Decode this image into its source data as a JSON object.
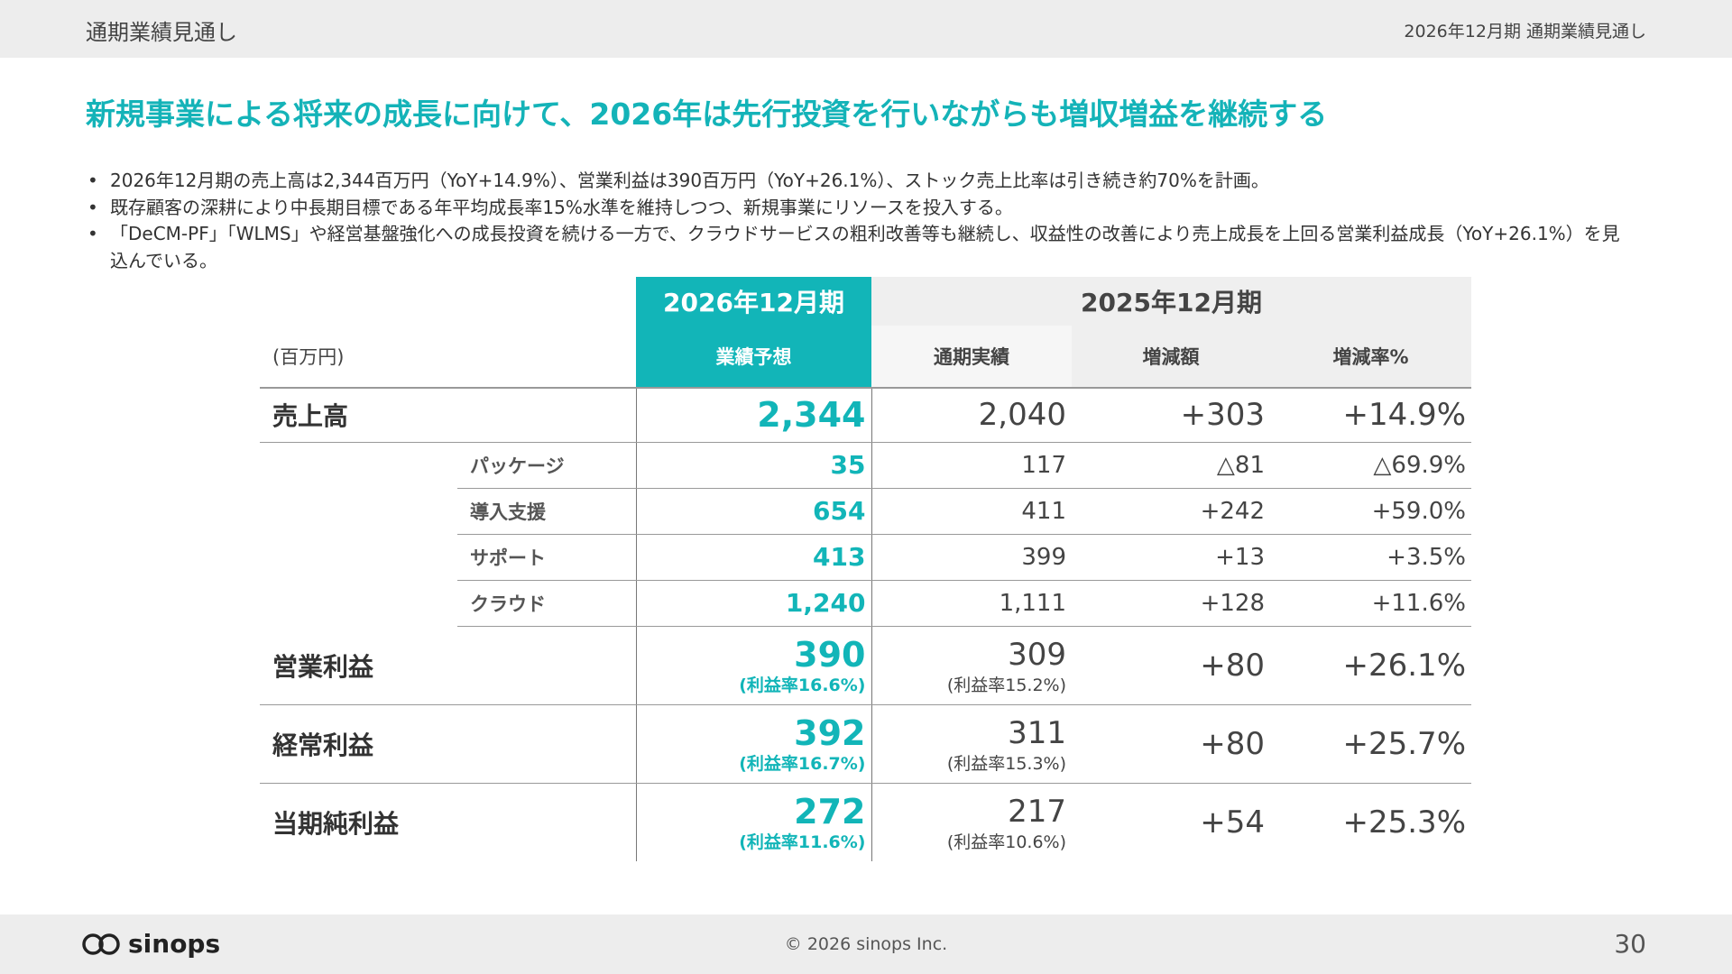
{
  "header": {
    "section": "通期業績見通し",
    "right": "2026年12月期 通期業績見通し"
  },
  "headline": "新規事業による将来の成長に向けて、2026年は先行投資を行いながらも増収増益を継続する",
  "bullets": [
    "2026年12月期の売上高は2,344百万円（YoY+14.9%）、営業利益は390百万円（YoY+26.1%）、ストック売上比率は引き続き約70%を計画。",
    "既存顧客の深耕により中長期目標である年平均成長率15%水準を維持しつつ、新規事業にリソースを投入する。",
    "「DeCM-PF」「WLMS」や経営基盤強化への成長投資を続ける一方で、クラウドサービスの粗利改善等も継続し、収益性の改善により売上成長を上回る営業利益成長（YoY+26.1%）を見込んでいる。"
  ],
  "table": {
    "unit": "(百万円)",
    "forecast_period": "2026年12月期",
    "forecast_label": "業績予想",
    "actual_period": "2025年12月期",
    "actual_columns": [
      "通期実績",
      "増減額",
      "増減率%"
    ],
    "rows": [
      {
        "label": "売上高",
        "kind": "main",
        "forecast": "2,344",
        "actual": "2,040",
        "diff": "+303",
        "rate": "+14.9%"
      },
      {
        "label": "パッケージ",
        "kind": "sub",
        "forecast": "35",
        "actual": "117",
        "diff": "△81",
        "rate": "△69.9%"
      },
      {
        "label": "導入支援",
        "kind": "sub",
        "forecast": "654",
        "actual": "411",
        "diff": "+242",
        "rate": "+59.0%"
      },
      {
        "label": "サポート",
        "kind": "sub",
        "forecast": "413",
        "actual": "399",
        "diff": "+13",
        "rate": "+3.5%"
      },
      {
        "label": "クラウド",
        "kind": "sub",
        "forecast": "1,240",
        "actual": "1,111",
        "diff": "+128",
        "rate": "+11.6%"
      },
      {
        "label": "営業利益",
        "kind": "margin",
        "forecast": "390",
        "forecast_margin": "(利益率16.6%)",
        "actual": "309",
        "actual_margin": "(利益率15.2%)",
        "diff": "+80",
        "rate": "+26.1%"
      },
      {
        "label": "経常利益",
        "kind": "margin",
        "forecast": "392",
        "forecast_margin": "(利益率16.7%)",
        "actual": "311",
        "actual_margin": "(利益率15.3%)",
        "diff": "+80",
        "rate": "+25.7%"
      },
      {
        "label": "当期純利益",
        "kind": "margin",
        "forecast": "272",
        "forecast_margin": "(利益率11.6%)",
        "actual": "217",
        "actual_margin": "(利益率10.6%)",
        "diff": "+54",
        "rate": "+25.3%"
      }
    ]
  },
  "footer": {
    "logo": "sinops",
    "copyright": "© 2026 sinops Inc.",
    "page": "30"
  }
}
